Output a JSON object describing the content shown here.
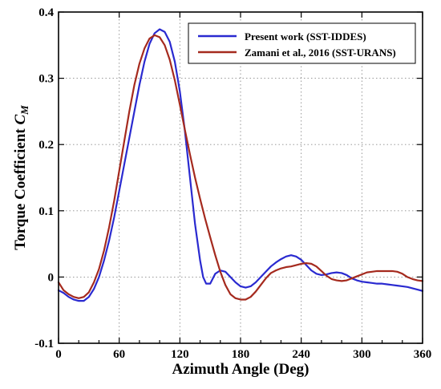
{
  "chart_data": {
    "type": "line",
    "title": "",
    "xlabel": "Azimuth Angle (Deg)",
    "ylabel_main": "Torque Coefficient ",
    "ylabel_var": "C",
    "ylabel_sub": "M",
    "xlim": [
      0,
      360
    ],
    "ylim": [
      -0.1,
      0.4
    ],
    "xticks": [
      0,
      60,
      120,
      180,
      240,
      300,
      360
    ],
    "yticks": [
      -0.1,
      0,
      0.1,
      0.2,
      0.3,
      0.4
    ],
    "xtick_labels": [
      "0",
      "60",
      "120",
      "180",
      "240",
      "300",
      "360"
    ],
    "ytick_labels": [
      "-0.1",
      "0",
      "0.1",
      "0.2",
      "0.3",
      "0.4"
    ],
    "grid": true,
    "legend_position": "top-right",
    "series": [
      {
        "name": "Present work (SST-IDDES)",
        "color": "#2a2ad0",
        "x": [
          0,
          5,
          10,
          15,
          20,
          25,
          30,
          35,
          40,
          45,
          50,
          55,
          60,
          65,
          70,
          75,
          80,
          85,
          90,
          95,
          100,
          105,
          110,
          115,
          120,
          125,
          130,
          135,
          140,
          143,
          146,
          150,
          155,
          160,
          165,
          170,
          175,
          180,
          185,
          190,
          195,
          200,
          205,
          210,
          215,
          220,
          225,
          230,
          235,
          240,
          245,
          250,
          255,
          260,
          265,
          270,
          275,
          280,
          285,
          290,
          295,
          300,
          305,
          310,
          315,
          320,
          325,
          330,
          335,
          340,
          345,
          350,
          355,
          360
        ],
        "y": [
          -0.02,
          -0.024,
          -0.03,
          -0.034,
          -0.036,
          -0.036,
          -0.03,
          -0.018,
          0.0,
          0.025,
          0.055,
          0.09,
          0.13,
          0.17,
          0.21,
          0.25,
          0.29,
          0.325,
          0.352,
          0.368,
          0.374,
          0.37,
          0.355,
          0.325,
          0.28,
          0.22,
          0.15,
          0.08,
          0.025,
          0.0,
          -0.01,
          -0.01,
          0.005,
          0.01,
          0.008,
          0.0,
          -0.008,
          -0.014,
          -0.016,
          -0.014,
          -0.008,
          0.0,
          0.008,
          0.016,
          0.022,
          0.027,
          0.031,
          0.033,
          0.031,
          0.026,
          0.018,
          0.01,
          0.005,
          0.003,
          0.004,
          0.006,
          0.007,
          0.006,
          0.003,
          -0.002,
          -0.005,
          -0.007,
          -0.008,
          -0.009,
          -0.01,
          -0.01,
          -0.011,
          -0.012,
          -0.013,
          -0.014,
          -0.015,
          -0.017,
          -0.019,
          -0.021
        ]
      },
      {
        "name": "Zamani et al., 2016 (SST-URANS)",
        "color": "#a52a1e",
        "x": [
          0,
          5,
          10,
          15,
          20,
          25,
          30,
          35,
          40,
          45,
          50,
          55,
          60,
          65,
          70,
          75,
          80,
          85,
          90,
          95,
          100,
          105,
          110,
          115,
          120,
          125,
          130,
          135,
          140,
          145,
          150,
          155,
          160,
          165,
          170,
          175,
          180,
          185,
          190,
          195,
          200,
          205,
          210,
          215,
          220,
          225,
          230,
          235,
          240,
          245,
          250,
          255,
          260,
          265,
          270,
          275,
          280,
          285,
          290,
          295,
          300,
          305,
          310,
          315,
          320,
          325,
          330,
          335,
          340,
          345,
          350,
          355,
          360
        ],
        "y": [
          -0.008,
          -0.02,
          -0.026,
          -0.03,
          -0.032,
          -0.03,
          -0.023,
          -0.008,
          0.012,
          0.04,
          0.075,
          0.115,
          0.16,
          0.205,
          0.25,
          0.29,
          0.322,
          0.345,
          0.36,
          0.365,
          0.362,
          0.35,
          0.328,
          0.297,
          0.26,
          0.222,
          0.185,
          0.15,
          0.118,
          0.088,
          0.06,
          0.033,
          0.008,
          -0.012,
          -0.026,
          -0.032,
          -0.034,
          -0.034,
          -0.03,
          -0.022,
          -0.012,
          -0.002,
          0.006,
          0.01,
          0.013,
          0.015,
          0.016,
          0.018,
          0.02,
          0.021,
          0.02,
          0.016,
          0.009,
          0.002,
          -0.003,
          -0.005,
          -0.006,
          -0.005,
          -0.002,
          0.001,
          0.004,
          0.007,
          0.008,
          0.009,
          0.009,
          0.009,
          0.009,
          0.008,
          0.005,
          0.0,
          -0.003,
          -0.005,
          -0.006
        ]
      }
    ]
  }
}
